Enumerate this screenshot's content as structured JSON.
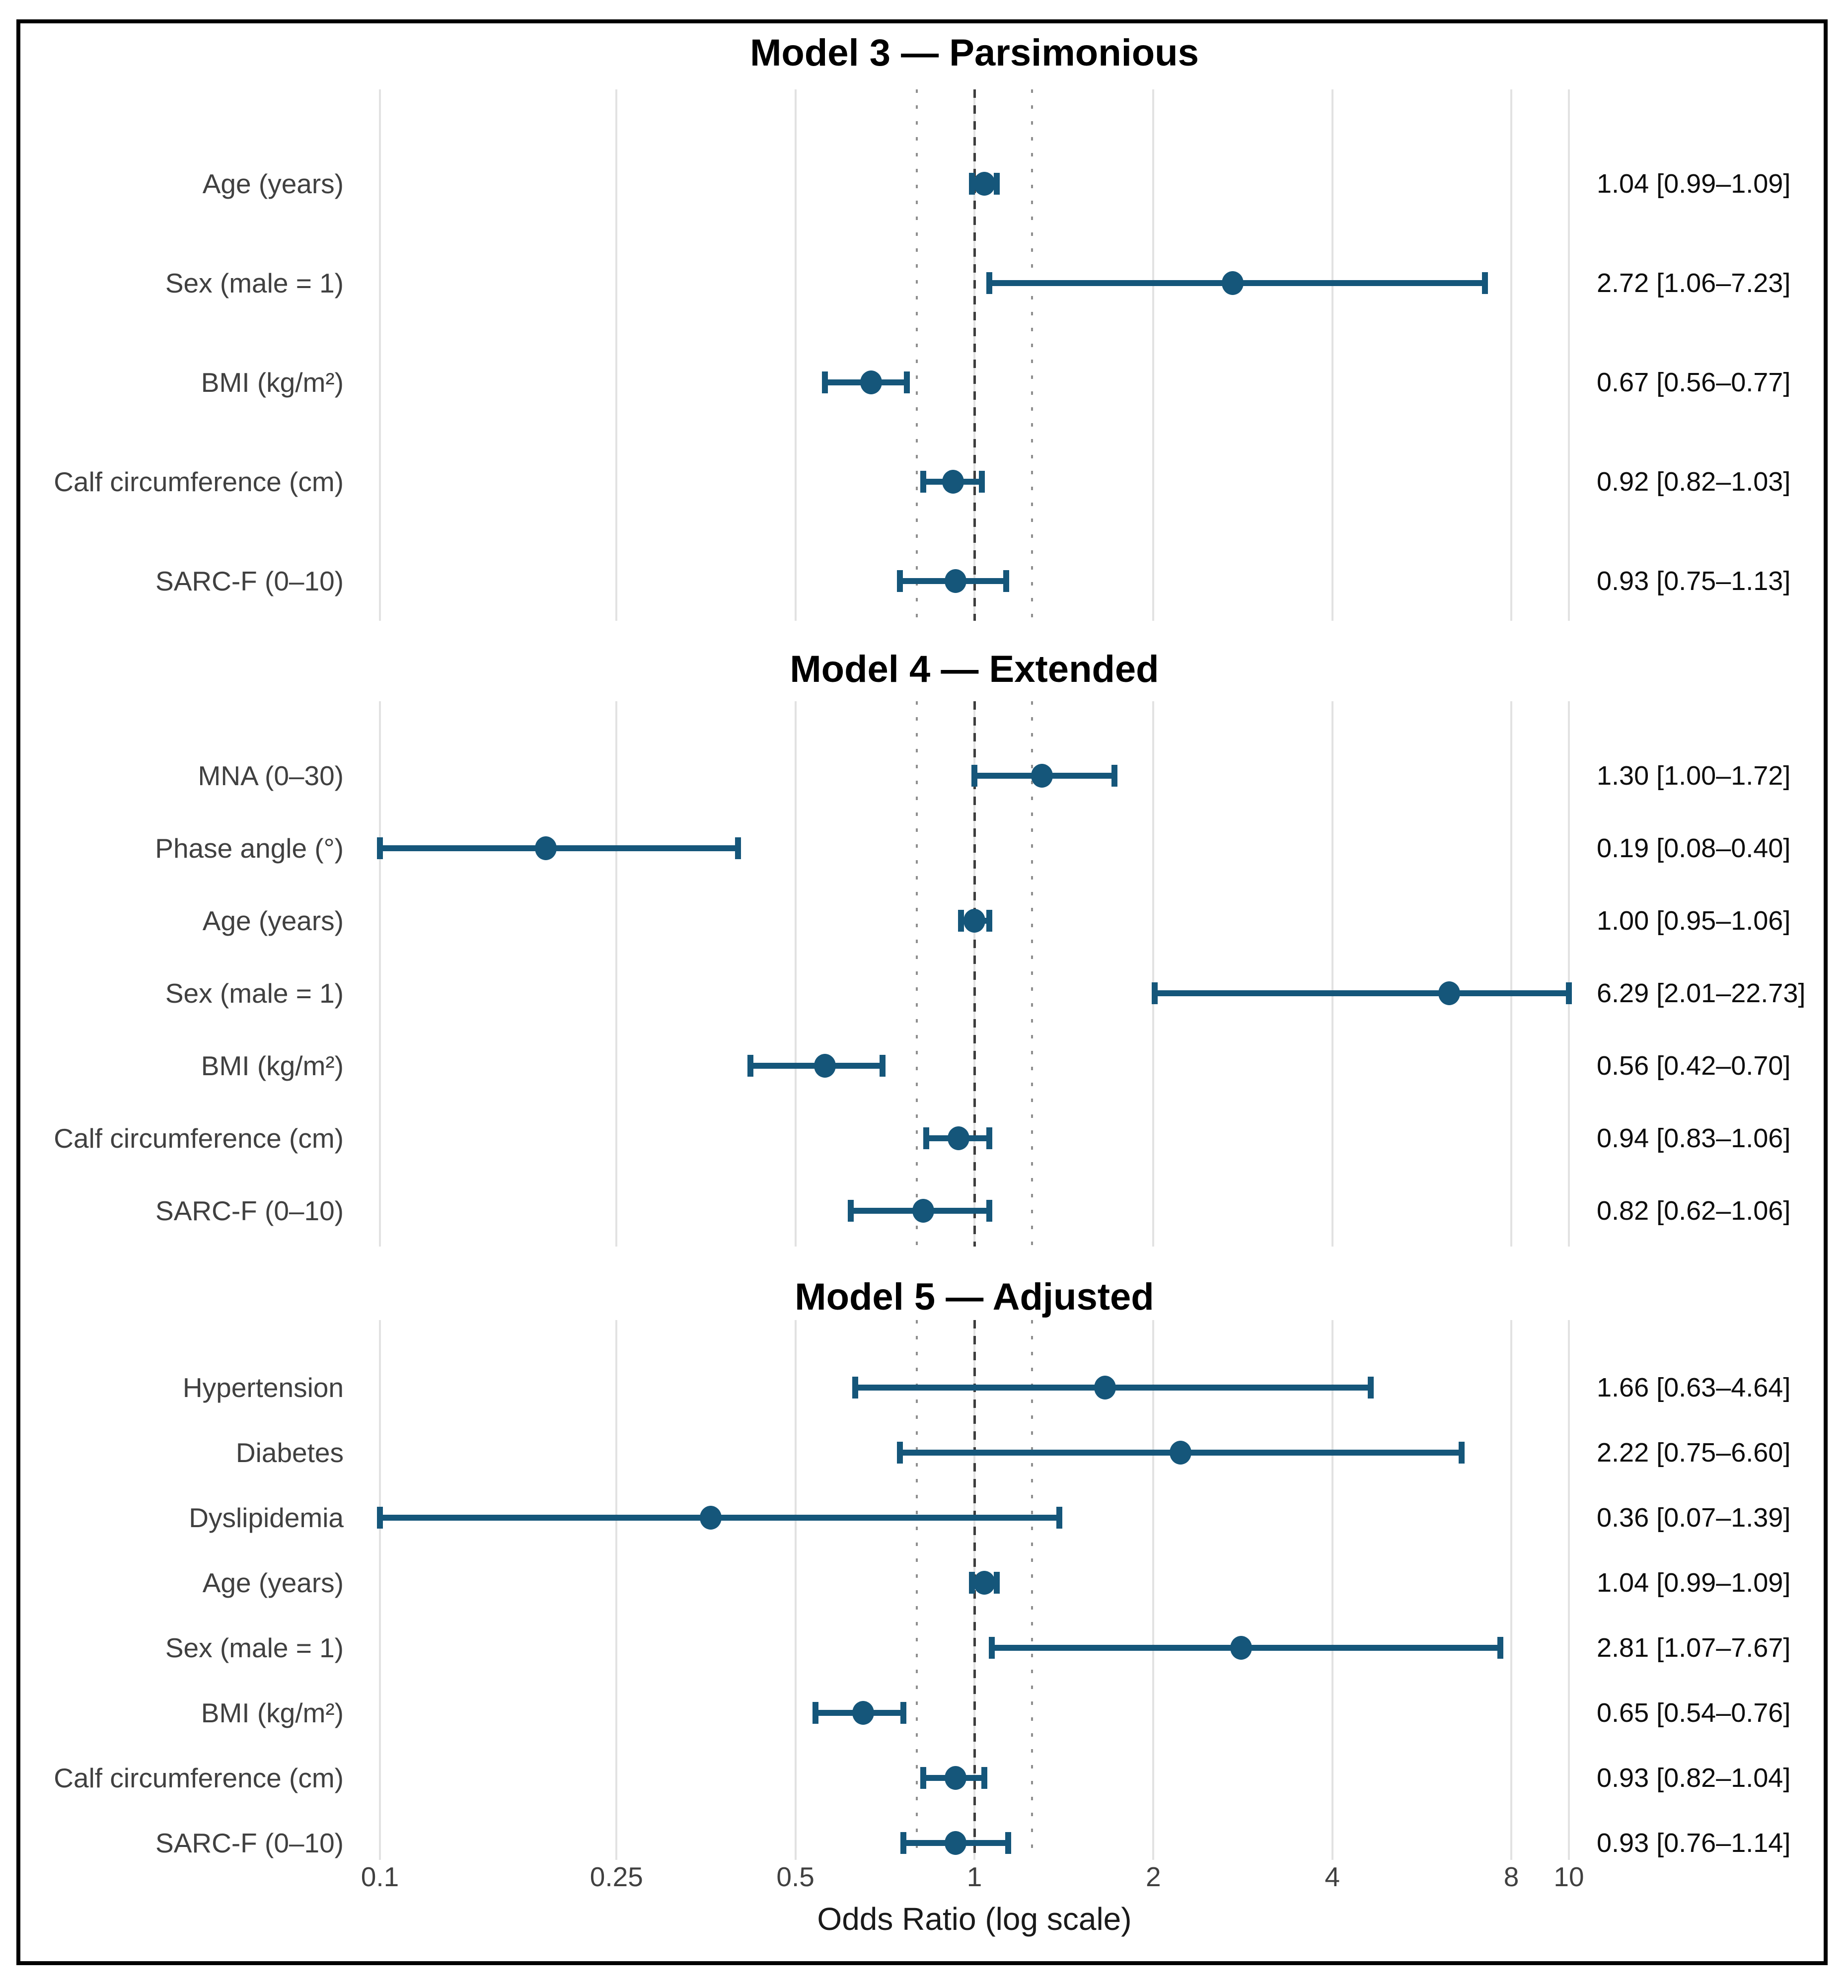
{
  "colors": {
    "marker": "#15567a",
    "grid_line": "#e2e2e2",
    "guide_line": "#8f8f8f",
    "reference_line": "#3d3d3d",
    "label_text": "#404040",
    "value_text": "#0d0d0d",
    "title_text": "#000000",
    "border": "#000000"
  },
  "chart_data": {
    "type": "forest",
    "xlabel": "Odds Ratio (log scale)",
    "xscale": "log",
    "xlim": [
      0.1,
      10
    ],
    "grid": true,
    "reference_line": 1,
    "guide_lines": [
      0.8,
      1.25
    ],
    "xticks": [
      {
        "value": 0.1,
        "label": "0.1"
      },
      {
        "value": 0.25,
        "label": "0.25"
      },
      {
        "value": 0.5,
        "label": "0.5"
      },
      {
        "value": 1,
        "label": "1"
      },
      {
        "value": 2,
        "label": "2"
      },
      {
        "value": 4,
        "label": "4"
      },
      {
        "value": 8,
        "label": "8"
      },
      {
        "value": 10,
        "label": "10"
      }
    ],
    "panels": [
      {
        "title": "Model 3 — Parsimonious",
        "rows": [
          {
            "label": "Age (years)",
            "or": 1.04,
            "ci_low": 0.99,
            "ci_high": 1.09,
            "annotation": "1.04 [0.99–1.09]"
          },
          {
            "label": "Sex (male = 1)",
            "or": 2.72,
            "ci_low": 1.06,
            "ci_high": 7.23,
            "annotation": "2.72 [1.06–7.23]"
          },
          {
            "label": "BMI (kg/m²)",
            "or": 0.67,
            "ci_low": 0.56,
            "ci_high": 0.77,
            "annotation": "0.67 [0.56–0.77]"
          },
          {
            "label": "Calf circumference (cm)",
            "or": 0.92,
            "ci_low": 0.82,
            "ci_high": 1.03,
            "annotation": "0.92 [0.82–1.03]"
          },
          {
            "label": "SARC-F (0–10)",
            "or": 0.93,
            "ci_low": 0.75,
            "ci_high": 1.13,
            "annotation": "0.93 [0.75–1.13]"
          }
        ]
      },
      {
        "title": "Model 4 — Extended",
        "rows": [
          {
            "label": "MNA (0–30)",
            "or": 1.3,
            "ci_low": 1.0,
            "ci_high": 1.72,
            "annotation": "1.30 [1.00–1.72]"
          },
          {
            "label": "Phase angle (°)",
            "or": 0.19,
            "ci_low": 0.08,
            "ci_high": 0.4,
            "annotation": "0.19 [0.08–0.40]"
          },
          {
            "label": "Age (years)",
            "or": 1.0,
            "ci_low": 0.95,
            "ci_high": 1.06,
            "annotation": "1.00 [0.95–1.06]"
          },
          {
            "label": "Sex (male = 1)",
            "or": 6.29,
            "ci_low": 2.01,
            "ci_high": 22.73,
            "annotation": "6.29 [2.01–22.73]"
          },
          {
            "label": "BMI (kg/m²)",
            "or": 0.56,
            "ci_low": 0.42,
            "ci_high": 0.7,
            "annotation": "0.56 [0.42–0.70]"
          },
          {
            "label": "Calf circumference (cm)",
            "or": 0.94,
            "ci_low": 0.83,
            "ci_high": 1.06,
            "annotation": "0.94 [0.83–1.06]"
          },
          {
            "label": "SARC-F (0–10)",
            "or": 0.82,
            "ci_low": 0.62,
            "ci_high": 1.06,
            "annotation": "0.82 [0.62–1.06]"
          }
        ]
      },
      {
        "title": "Model 5 — Adjusted",
        "rows": [
          {
            "label": "Hypertension",
            "or": 1.66,
            "ci_low": 0.63,
            "ci_high": 4.64,
            "annotation": "1.66 [0.63–4.64]"
          },
          {
            "label": "Diabetes",
            "or": 2.22,
            "ci_low": 0.75,
            "ci_high": 6.6,
            "annotation": "2.22 [0.75–6.60]"
          },
          {
            "label": "Dyslipidemia",
            "or": 0.36,
            "ci_low": 0.07,
            "ci_high": 1.39,
            "annotation": "0.36 [0.07–1.39]"
          },
          {
            "label": "Age (years)",
            "or": 1.04,
            "ci_low": 0.99,
            "ci_high": 1.09,
            "annotation": "1.04 [0.99–1.09]"
          },
          {
            "label": "Sex (male = 1)",
            "or": 2.81,
            "ci_low": 1.07,
            "ci_high": 7.67,
            "annotation": "2.81 [1.07–7.67]"
          },
          {
            "label": "BMI (kg/m²)",
            "or": 0.65,
            "ci_low": 0.54,
            "ci_high": 0.76,
            "annotation": "0.65 [0.54–0.76]"
          },
          {
            "label": "Calf circumference (cm)",
            "or": 0.93,
            "ci_low": 0.82,
            "ci_high": 1.04,
            "annotation": "0.93 [0.82–1.04]"
          },
          {
            "label": "SARC-F (0–10)",
            "or": 0.93,
            "ci_low": 0.76,
            "ci_high": 1.14,
            "annotation": "0.93 [0.76–1.14]"
          }
        ]
      }
    ]
  }
}
